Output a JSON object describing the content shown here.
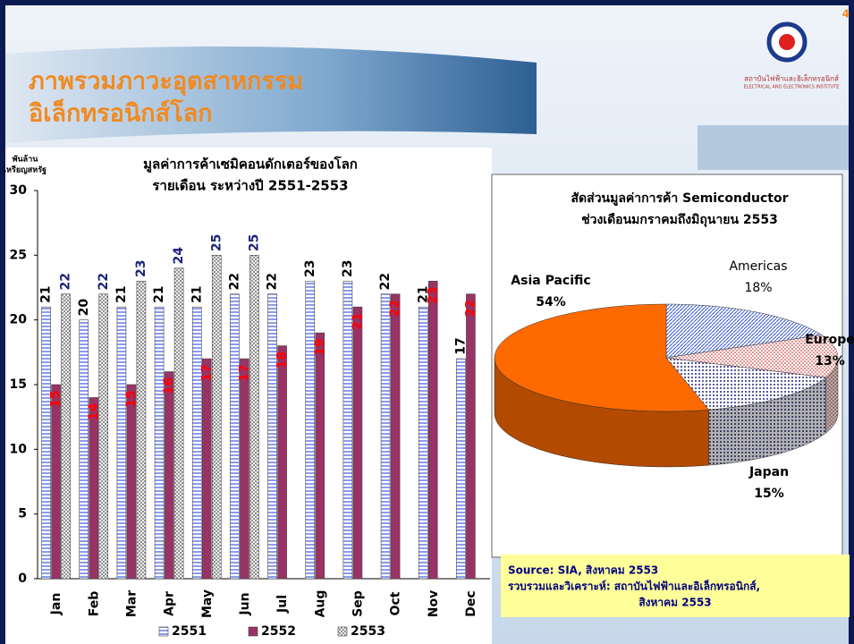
{
  "slide": {
    "title": [
      "ภาพรวมภาวะอุตสาหกรรม",
      "อิเล็กทรอนิกส์โลก"
    ],
    "logo_name": "สถาบันไฟฟ้าและอิเล็กทรอนิกส์",
    "logo_en": "ELECTRICAL AND ELECTRONICS INSTITUTE",
    "page_number": "4"
  },
  "source": [
    "Source: SIA, สิงหาคม 2553",
    "รวบรวมและวิเคราะห์: สถาบันไฟฟ้าและอิเล็กทรอนิกส์,",
    "สิงหาคม 2553"
  ],
  "chart_data": [
    {
      "type": "bar",
      "title": [
        "มูลค่าการค้าเซมิคอนดักเตอร์ของโลก",
        "รายเดือน ระหว่างปี 2551-2553"
      ],
      "y_label": [
        "พันล้าน",
        "เหรียญสหรัฐ"
      ],
      "categories": [
        "Jan",
        "Feb",
        "Mar",
        "Apr",
        "May",
        "Jun",
        "Jul",
        "Aug",
        "Sep",
        "Oct",
        "Nov",
        "Dec"
      ],
      "series": [
        {
          "name": "2551",
          "color": "#8c9cf0",
          "values": [
            21,
            20,
            21,
            21,
            21,
            22,
            22,
            23,
            23,
            22,
            21,
            17
          ]
        },
        {
          "name": "2552",
          "color": "#993366",
          "values": [
            15,
            14,
            15,
            16,
            17,
            17,
            18,
            19,
            21,
            22,
            23,
            22
          ]
        },
        {
          "name": "2553",
          "color": "#ffffff",
          "values": [
            22,
            22,
            23,
            24,
            25,
            25,
            null,
            null,
            null,
            null,
            null,
            null
          ]
        }
      ],
      "ylim": [
        0,
        30
      ],
      "yticks": [
        0,
        5,
        10,
        15,
        20,
        25,
        30
      ],
      "legend": "bottom"
    },
    {
      "type": "pie",
      "title": [
        "สัดส่วนมูลค่าการค้า Semiconductor",
        "ช่วงเดือนมกราคมถึงมิถุนายน 2553"
      ],
      "categories": [
        "Americas",
        "Europe",
        "Japan",
        "Asia Pacific"
      ],
      "values": [
        18,
        13,
        15,
        54
      ],
      "value_labels": [
        "18%",
        "13%",
        "15%",
        "54%"
      ],
      "colors": [
        "#c8ccf8",
        "#f4c8c8",
        "#4a4a90",
        "#ff6a00"
      ]
    }
  ]
}
